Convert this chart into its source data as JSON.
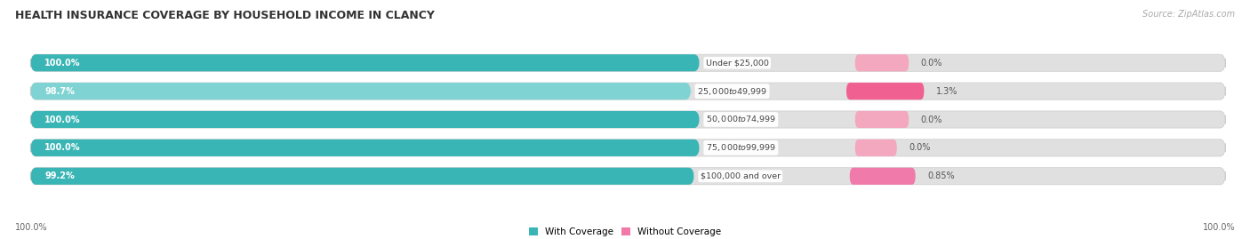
{
  "title": "HEALTH INSURANCE COVERAGE BY HOUSEHOLD INCOME IN CLANCY",
  "source": "Source: ZipAtlas.com",
  "categories": [
    "Under $25,000",
    "$25,000 to $49,999",
    "$50,000 to $74,999",
    "$75,000 to $99,999",
    "$100,000 and over"
  ],
  "with_coverage": [
    100.0,
    98.7,
    100.0,
    100.0,
    99.2
  ],
  "without_coverage": [
    0.0,
    1.3,
    0.0,
    0.0,
    0.85
  ],
  "with_color_dark": "#3ab5b5",
  "with_color_light": "#7fd3d3",
  "without_color_strong": "#f06090",
  "without_color_light": "#f4a8c0",
  "bar_bg_color": "#e8e8e8",
  "legend_with": "With Coverage",
  "legend_without": "Without Coverage",
  "bottom_left_label": "100.0%",
  "bottom_right_label": "100.0%",
  "figsize": [
    14.06,
    2.69
  ],
  "dpi": 100
}
